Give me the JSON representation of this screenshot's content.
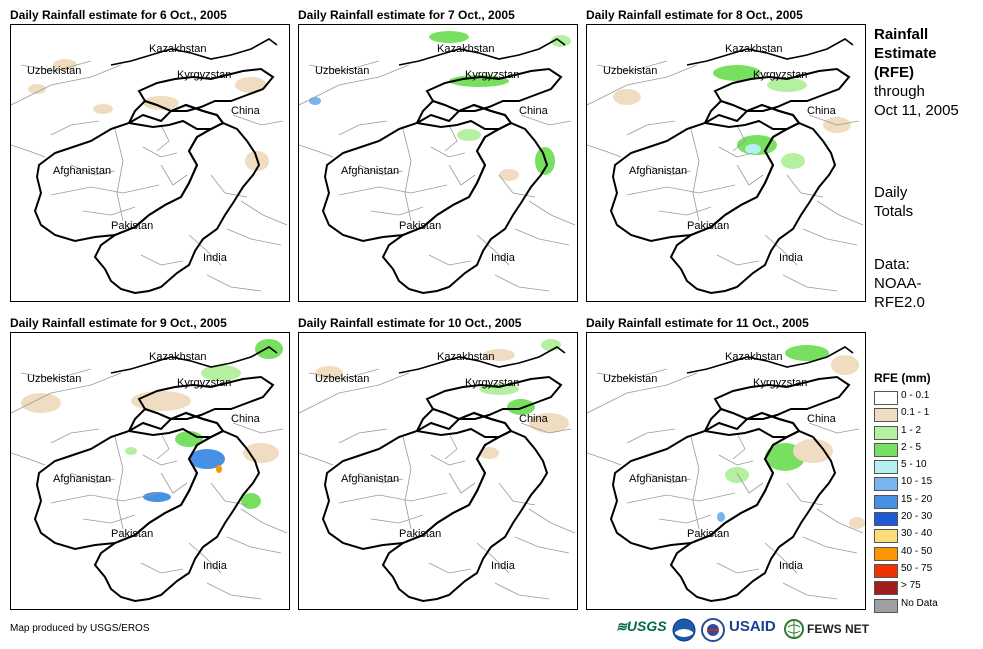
{
  "panels": [
    {
      "title": "Daily Rainfall estimate for 6 Oct., 2005"
    },
    {
      "title": "Daily Rainfall estimate for 7 Oct., 2005"
    },
    {
      "title": "Daily Rainfall estimate for 8 Oct., 2005"
    },
    {
      "title": "Daily Rainfall estimate for 9 Oct., 2005"
    },
    {
      "title": "Daily Rainfall estimate for 10 Oct., 2005"
    },
    {
      "title": "Daily Rainfall estimate for 11 Oct., 2005"
    }
  ],
  "map_labels": {
    "kazakhstan": "Kazakhstan",
    "uzbekistan": "Uzbekistan",
    "kyrgyzstan": "Kyrgyzstan",
    "china": "China",
    "afghanistan": "Afghanistan",
    "pakistan": "Pakistan",
    "india": "India"
  },
  "sidebar": {
    "heading_1": "Rainfall",
    "heading_2": "Estimate",
    "heading_3": "(RFE)",
    "through_1": "through",
    "through_2": "Oct 11, 2005",
    "daily_1": "Daily",
    "daily_2": "Totals",
    "data_1": "Data:",
    "data_2": "NOAA-",
    "data_3": "RFE2.0"
  },
  "legend": {
    "title": "RFE (mm)",
    "items": [
      {
        "label": "0 - 0.1",
        "color": "#ffffff"
      },
      {
        "label": "0.1 - 1",
        "color": "#f0dcc0"
      },
      {
        "label": "1 - 2",
        "color": "#b4f0a0"
      },
      {
        "label": "2 - 5",
        "color": "#78e060"
      },
      {
        "label": "5 - 10",
        "color": "#b4f0f0"
      },
      {
        "label": "10 - 15",
        "color": "#78b4f0"
      },
      {
        "label": "15 - 20",
        "color": "#4690e6"
      },
      {
        "label": "20 - 30",
        "color": "#1e5ad2"
      },
      {
        "label": "30 - 40",
        "color": "#fadc78"
      },
      {
        "label": "40 - 50",
        "color": "#fa9600"
      },
      {
        "label": "50 - 75",
        "color": "#f03200"
      },
      {
        "label": "> 75",
        "color": "#a01e1e"
      },
      {
        "label": "No Data",
        "color": "#a0a0a0"
      }
    ]
  },
  "footer": {
    "credit": "Map produced by USGS/EROS",
    "logo_usgs": "USGS",
    "logo_usaid": "USAID",
    "logo_fewsnet": "FEWS NET"
  }
}
